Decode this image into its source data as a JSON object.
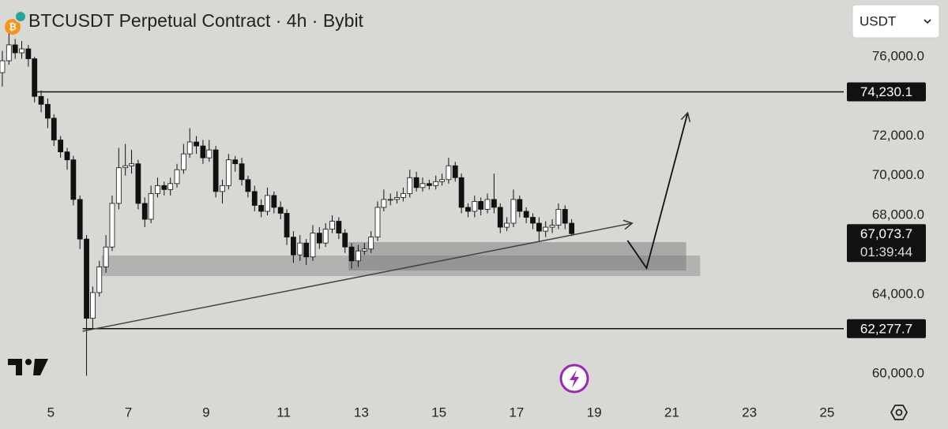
{
  "chart_data": {
    "type": "candlestick",
    "title": "BTCUSDT Perpetual Contract · 4h · Bybit",
    "currency": "USDT",
    "x": [
      3.75,
      3.92,
      4.08,
      4.25,
      4.42,
      4.58,
      4.75,
      4.92,
      5.08,
      5.25,
      5.42,
      5.58,
      5.75,
      5.92,
      6.08,
      6.25,
      6.42,
      6.58,
      6.75,
      6.92,
      7.08,
      7.25,
      7.42,
      7.58,
      7.75,
      7.92,
      8.08,
      8.25,
      8.42,
      8.58,
      8.75,
      8.92,
      9.08,
      9.25,
      9.42,
      9.58,
      9.75,
      9.92,
      10.08,
      10.25,
      10.42,
      10.58,
      10.75,
      10.92,
      11.08,
      11.25,
      11.42,
      11.58,
      11.75,
      11.92,
      12.08,
      12.25,
      12.42,
      12.58,
      12.75,
      12.92,
      13.08,
      13.25,
      13.42,
      13.58,
      13.75,
      13.92,
      14.08,
      14.25,
      14.42,
      14.58,
      14.75,
      14.92,
      15.08,
      15.25,
      15.42,
      15.58,
      15.75,
      15.92,
      16.08,
      16.25,
      16.42,
      16.58,
      16.75,
      16.92,
      17.08,
      17.25,
      17.42,
      17.58,
      17.75,
      17.92,
      18.08,
      18.25,
      18.42
    ],
    "open": [
      75200,
      75800,
      76600,
      76200,
      76400,
      75900,
      74000,
      73600,
      72900,
      71800,
      71200,
      70800,
      68800,
      66800,
      62800,
      64100,
      65400,
      66400,
      68600,
      70400,
      70500,
      70600,
      68600,
      67800,
      69100,
      69500,
      69300,
      69600,
      70300,
      71100,
      71700,
      71500,
      70900,
      71300,
      69200,
      69500,
      70800,
      70600,
      69800,
      69200,
      68500,
      68200,
      69000,
      68400,
      68100,
      66900,
      66000,
      66600,
      65900,
      67100,
      66600,
      67300,
      67700,
      67100,
      66400,
      65700,
      66200,
      66300,
      66900,
      68400,
      68800,
      68800,
      68900,
      69100,
      69900,
      69400,
      69600,
      69500,
      69700,
      69800,
      70500,
      69900,
      68400,
      68200,
      68700,
      68300,
      68800,
      68400,
      67400,
      67600,
      68800,
      68200,
      67900,
      67600,
      67200,
      67400,
      67500,
      68300,
      67600
    ],
    "high": [
      76300,
      77200,
      76900,
      76800,
      76600,
      76000,
      74300,
      73900,
      73100,
      72000,
      71400,
      71000,
      69000,
      67000,
      64400,
      65700,
      67000,
      69000,
      71400,
      71600,
      71300,
      70800,
      68900,
      69500,
      69900,
      69700,
      69900,
      70600,
      71600,
      72400,
      72000,
      71800,
      71800,
      71500,
      69800,
      71100,
      71000,
      70900,
      70000,
      69500,
      68800,
      69400,
      69200,
      68700,
      68300,
      67200,
      67000,
      66800,
      67500,
      67400,
      67600,
      68000,
      67900,
      67300,
      66600,
      66500,
      66600,
      67200,
      68700,
      69300,
      69100,
      69200,
      69400,
      70300,
      70200,
      69900,
      69800,
      70000,
      70100,
      70900,
      70700,
      70100,
      68600,
      69000,
      68900,
      69100,
      70100,
      68600,
      67900,
      69300,
      69000,
      68400,
      68100,
      67900,
      67700,
      67800,
      68600,
      68500,
      67800
    ],
    "low": [
      74500,
      75600,
      75900,
      75900,
      75500,
      73700,
      73200,
      72400,
      71500,
      70900,
      70300,
      68500,
      66300,
      59900,
      62300,
      63900,
      65100,
      66200,
      68300,
      70000,
      70100,
      68300,
      67400,
      67600,
      68900,
      69000,
      69000,
      69400,
      70100,
      70900,
      71100,
      70600,
      70700,
      68900,
      68600,
      69300,
      70200,
      69500,
      68900,
      68200,
      67900,
      68000,
      68100,
      67800,
      66500,
      65600,
      65700,
      65500,
      65700,
      66300,
      66400,
      67100,
      66800,
      66100,
      65300,
      65400,
      66000,
      66100,
      66700,
      68200,
      68500,
      68600,
      68700,
      68900,
      69200,
      69200,
      69300,
      69300,
      69500,
      69600,
      69700,
      68100,
      67900,
      67900,
      68000,
      68100,
      68100,
      67100,
      67200,
      67400,
      67900,
      67600,
      67300,
      66700,
      66900,
      67100,
      67300,
      67300,
      66950
    ],
    "close": [
      75800,
      76600,
      76200,
      76400,
      75900,
      74000,
      73600,
      72900,
      71800,
      71200,
      70800,
      68800,
      66800,
      62800,
      64100,
      65400,
      66400,
      68600,
      70400,
      70500,
      70600,
      68600,
      67800,
      69100,
      69500,
      69300,
      69600,
      70300,
      71100,
      71700,
      71500,
      70900,
      71300,
      69200,
      69500,
      70800,
      70600,
      69800,
      69200,
      68500,
      68200,
      69000,
      68400,
      68100,
      66900,
      66000,
      66600,
      65900,
      67100,
      66600,
      67300,
      67700,
      67100,
      66400,
      65700,
      66200,
      66300,
      66900,
      68400,
      68800,
      68800,
      68900,
      69100,
      69900,
      69400,
      69600,
      69500,
      69700,
      69800,
      70500,
      69900,
      68400,
      68200,
      68700,
      68300,
      68800,
      68400,
      67400,
      67600,
      68800,
      68200,
      67900,
      67600,
      67200,
      67400,
      67500,
      68300,
      67600,
      67073.7
    ],
    "up_color": "#ffffff",
    "down_color": "#111111",
    "xlim": [
      3.69,
      25.43
    ],
    "ylim": [
      58567,
      78866
    ],
    "xticks": [
      5,
      7,
      9,
      11,
      13,
      15,
      17,
      19,
      21,
      23,
      25
    ],
    "yticks": [
      {
        "value": 60000,
        "label": "60,000.0"
      },
      {
        "value": 64000,
        "label": "64,000.0"
      },
      {
        "value": 68000,
        "label": "68,000.0"
      },
      {
        "value": 70000,
        "label": "70,000.0"
      },
      {
        "value": 72000,
        "label": "72,000.0"
      },
      {
        "value": 76000,
        "label": "76,000.0"
      }
    ],
    "levels": [
      {
        "value": 74230.1,
        "label": "74,230.1",
        "x_start": 4.61
      },
      {
        "value": 62277.7,
        "label": "62,277.7",
        "x_start": 5.82
      }
    ],
    "last_price": {
      "value": 67073.7,
      "label": "67,073.7",
      "countdown": "01:39:44"
    },
    "zones": [
      {
        "x": [
          6.31,
          21.73
        ],
        "y": [
          64935,
          65970
        ],
        "color": "rgba(110,110,110,0.35)"
      },
      {
        "x": [
          12.67,
          21.37
        ],
        "y": [
          65214,
          66647
        ],
        "color": "rgba(110,110,110,0.45)"
      }
    ],
    "trendline": {
      "x": [
        5.82,
        19.98
      ],
      "y": [
        62149,
        67602
      ]
    },
    "projection": {
      "x": [
        19.86,
        20.35,
        21.41
      ],
      "y": [
        66726,
        65333,
        73174
      ]
    }
  }
}
